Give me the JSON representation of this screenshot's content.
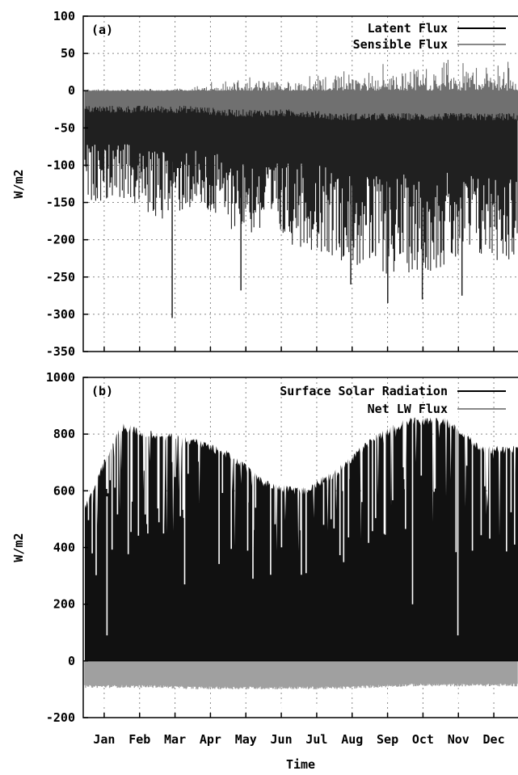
{
  "chart_data": [
    {
      "type": "area",
      "panel_label": "(a)",
      "ylabel": "W/m2",
      "xlabel": "",
      "ylim": [
        -350,
        100
      ],
      "yticks": [
        -350,
        -300,
        -250,
        -200,
        -150,
        -100,
        -50,
        0,
        50,
        100
      ],
      "grid": true,
      "legend_position": "top-right",
      "x": [
        "Jan",
        "Feb",
        "Mar",
        "Apr",
        "May",
        "Jun",
        "Jul",
        "Aug",
        "Sep",
        "Oct",
        "Nov",
        "Dec"
      ],
      "series": [
        {
          "name": "Latent Flux",
          "color": "#202020",
          "min": [
            -150,
            -145,
            -175,
            -160,
            -185,
            -200,
            -210,
            -225,
            -250,
            -245,
            -240,
            -230
          ],
          "max": [
            -30,
            -30,
            -30,
            -30,
            -35,
            -35,
            -35,
            -40,
            -40,
            -40,
            -40,
            -40
          ],
          "spikes": [
            {
              "month": "Mar",
              "value": -305
            },
            {
              "month": "May",
              "value": -268
            },
            {
              "month": "Aug",
              "value": -260
            },
            {
              "month": "Sep",
              "value": -285
            },
            {
              "month": "Oct",
              "value": -280
            },
            {
              "month": "Nov",
              "value": -275
            }
          ]
        },
        {
          "name": "Sensible Flux",
          "color": "#707070",
          "min": [
            -40,
            -40,
            -40,
            -40,
            -40,
            -40,
            -45,
            -45,
            -45,
            -45,
            -45,
            -40
          ],
          "max": [
            5,
            5,
            5,
            10,
            20,
            20,
            25,
            35,
            40,
            45,
            50,
            45
          ]
        }
      ]
    },
    {
      "type": "area",
      "panel_label": "(b)",
      "ylabel": "W/m2",
      "xlabel": "Time",
      "ylim": [
        -200,
        1000
      ],
      "yticks": [
        -200,
        0,
        200,
        400,
        600,
        800,
        1000
      ],
      "grid": true,
      "legend_position": "top-right",
      "x": [
        "Jan",
        "Feb",
        "Mar",
        "Apr",
        "May",
        "Jun",
        "Jul",
        "Aug",
        "Sep",
        "Oct",
        "Nov",
        "Dec"
      ],
      "series": [
        {
          "name": "Surface Solar Radiation",
          "color": "#111111",
          "envelope": [
            560,
            840,
            810,
            790,
            740,
            640,
            610,
            680,
            800,
            860,
            860,
            760
          ],
          "dips": [
            {
              "month": "Jan",
              "value": 90
            },
            {
              "month": "Mar",
              "value": 270
            },
            {
              "month": "May",
              "value": 290
            },
            {
              "month": "Jul",
              "value": 480
            },
            {
              "month": "Oct",
              "value": 200
            },
            {
              "month": "Nov",
              "value": 90
            }
          ]
        },
        {
          "name": "Net LW Flux",
          "color": "#a0a0a0",
          "min": [
            -160,
            -165,
            -165,
            -165,
            -160,
            -160,
            -165,
            -160,
            -160,
            -150,
            -150,
            -160
          ],
          "max": [
            -95,
            -95,
            -95,
            -100,
            -100,
            -100,
            -100,
            -100,
            -95,
            -90,
            -90,
            -90
          ]
        }
      ]
    }
  ]
}
